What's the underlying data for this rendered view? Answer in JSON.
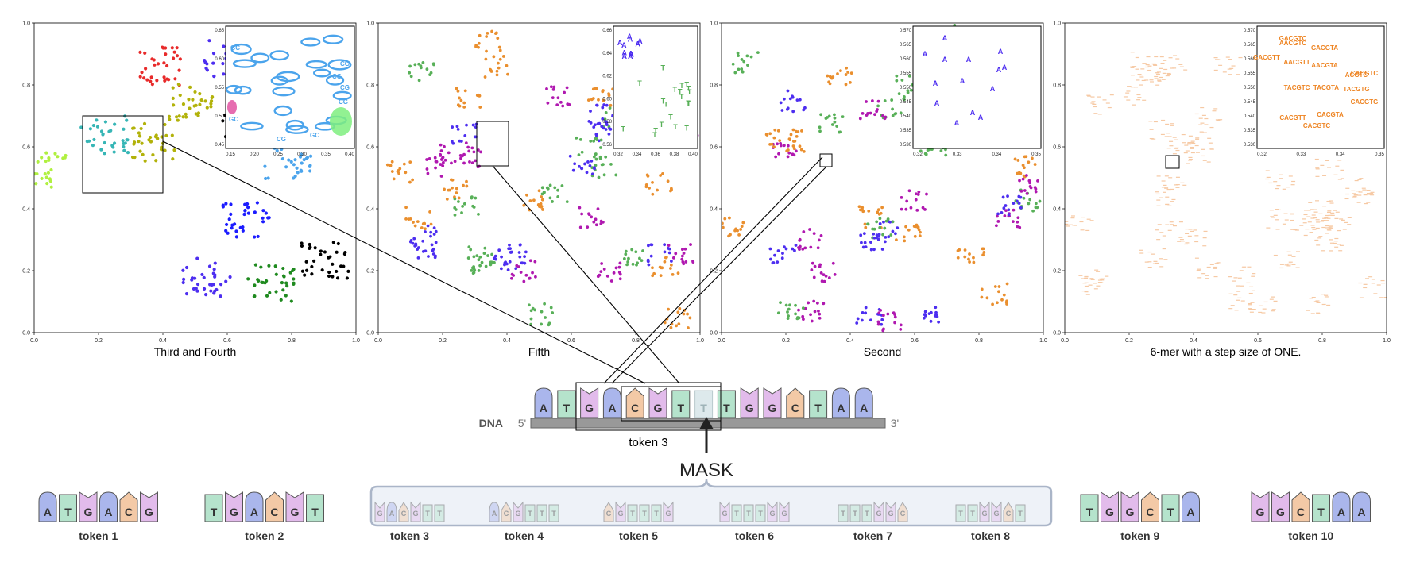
{
  "colors": {
    "A": "#aab6ec",
    "T": "#b5e3cc",
    "G": "#e2bbeb",
    "C": "#f3c9a6",
    "stroke": "#555555",
    "mask_fill": "#dde9ec",
    "mask_letter": "#9fb4b8",
    "backbone": "#999999",
    "bracket": "#aab5c8",
    "cluster_palette": [
      "#000000",
      "#4d2ef0",
      "#b2b20a",
      "#e0489c",
      "#4ba4ec",
      "#7fee7f",
      "#1f8a1f",
      "#e82a2a",
      "#37b6b6",
      "#8b3fd0",
      "#b0f040",
      "#1c1cff",
      "#e57fc4",
      "#ea8f2e",
      "#58b058",
      "#b018b0"
    ],
    "kmer_orange": "#ee8524",
    "kmer_light": "#f6c9a4"
  },
  "panels": [
    {
      "caption": "Third and Fourth",
      "x_ticks": [
        "0.0",
        "0.2",
        "0.4",
        "0.6",
        "0.8",
        "1.0"
      ],
      "y_ticks": [
        "0.0",
        "0.2",
        "0.4",
        "0.6",
        "0.8",
        "1.0"
      ],
      "inset_x_ticks": [
        "0.15",
        "0.20",
        "0.25",
        "0.30",
        "0.35",
        "0.40"
      ],
      "inset_y_ticks": [
        "0.65",
        "0.60",
        "0.55",
        "0.50",
        "0.45"
      ],
      "inset_labels": [
        "CG",
        "CG",
        "CG",
        "GC",
        "GC",
        "CG",
        "CG",
        "GC"
      ]
    },
    {
      "caption": "Fifth",
      "x_ticks": [
        "0.0",
        "0.2",
        "0.4",
        "0.6",
        "0.8",
        "1.0"
      ],
      "y_ticks": [
        "0.0",
        "0.2",
        "0.4",
        "0.6",
        "0.8",
        "1.0"
      ],
      "inset_x_ticks": [
        "0.32",
        "0.34",
        "0.36",
        "0.38",
        "0.40"
      ],
      "inset_y_ticks": [
        "0.66",
        "0.64",
        "0.62",
        "0.60",
        "0.58",
        "0.56"
      ],
      "inset_labels": [
        "A",
        "T"
      ]
    },
    {
      "caption": "Second",
      "x_ticks": [
        "0.0",
        "0.2",
        "0.4",
        "0.6",
        "0.8",
        "1.0"
      ],
      "y_ticks": [
        "0.0",
        "0.2",
        "0.4",
        "0.6",
        "0.8",
        "1.0"
      ],
      "inset_x_ticks": [
        "0.32",
        "0.33",
        "0.34",
        "0.35"
      ],
      "inset_y_ticks": [
        "0.570",
        "0.565",
        "0.560",
        "0.555",
        "0.550",
        "0.545",
        "0.540",
        "0.535",
        "0.530"
      ],
      "inset_labels": [
        "A"
      ]
    },
    {
      "caption": "6-mer with a step size of ONE.",
      "x_ticks": [
        "0.0",
        "0.2",
        "0.4",
        "0.6",
        "0.8",
        "1.0"
      ],
      "y_ticks": [
        "0.0",
        "0.2",
        "0.4",
        "0.6",
        "0.8",
        "1.0"
      ],
      "inset_x_ticks": [
        "0.32",
        "0.33",
        "0.34",
        "0.35"
      ],
      "inset_y_ticks": [
        "0.570",
        "0.565",
        "0.560",
        "0.555",
        "0.550",
        "0.545",
        "0.540",
        "0.535",
        "0.530"
      ],
      "inset_labels": [
        "GACGTC",
        "AACGTC",
        "GACGTA",
        "GACGTT",
        "AACGTT",
        "AACGTA",
        "CACGTC",
        "ACGTC",
        "TACGTC",
        "TACGTA",
        "TACGTG",
        "CACGTG",
        "CACGTT",
        "CACGTA",
        "CACGTC"
      ]
    }
  ],
  "dna": {
    "label": "DNA",
    "five_prime": "5'",
    "three_prime": "3'",
    "sequence": [
      "A",
      "T",
      "G",
      "A",
      "C",
      "G",
      "T",
      "T",
      "T",
      "G",
      "G",
      "C",
      "T",
      "A",
      "A"
    ],
    "masked_index": 7,
    "token_label": "token 3",
    "mask_label": "MASK"
  },
  "tokens_left": [
    {
      "label": "token 1",
      "bases": [
        "A",
        "T",
        "G",
        "A",
        "C",
        "G"
      ]
    },
    {
      "label": "token 2",
      "bases": [
        "T",
        "G",
        "A",
        "C",
        "G",
        "T"
      ]
    }
  ],
  "tokens_masked": [
    {
      "label": "token 3",
      "bases": [
        "G",
        "A",
        "C",
        "G",
        "T",
        "T"
      ]
    },
    {
      "label": "token 4",
      "bases": [
        "A",
        "C",
        "G",
        "T",
        "T",
        "T"
      ]
    },
    {
      "label": "token 5",
      "bases": [
        "C",
        "G",
        "T",
        "T",
        "T",
        "G"
      ]
    },
    {
      "label": "token 6",
      "bases": [
        "G",
        "T",
        "T",
        "T",
        "G",
        "G"
      ]
    },
    {
      "label": "token 7",
      "bases": [
        "T",
        "T",
        "T",
        "G",
        "G",
        "C"
      ]
    },
    {
      "label": "token 8",
      "bases": [
        "T",
        "T",
        "G",
        "G",
        "C",
        "T"
      ]
    }
  ],
  "tokens_right": [
    {
      "label": "token 9",
      "bases": [
        "T",
        "G",
        "G",
        "C",
        "T",
        "A"
      ]
    },
    {
      "label": "token 10",
      "bases": [
        "G",
        "G",
        "C",
        "T",
        "A",
        "A"
      ]
    }
  ]
}
